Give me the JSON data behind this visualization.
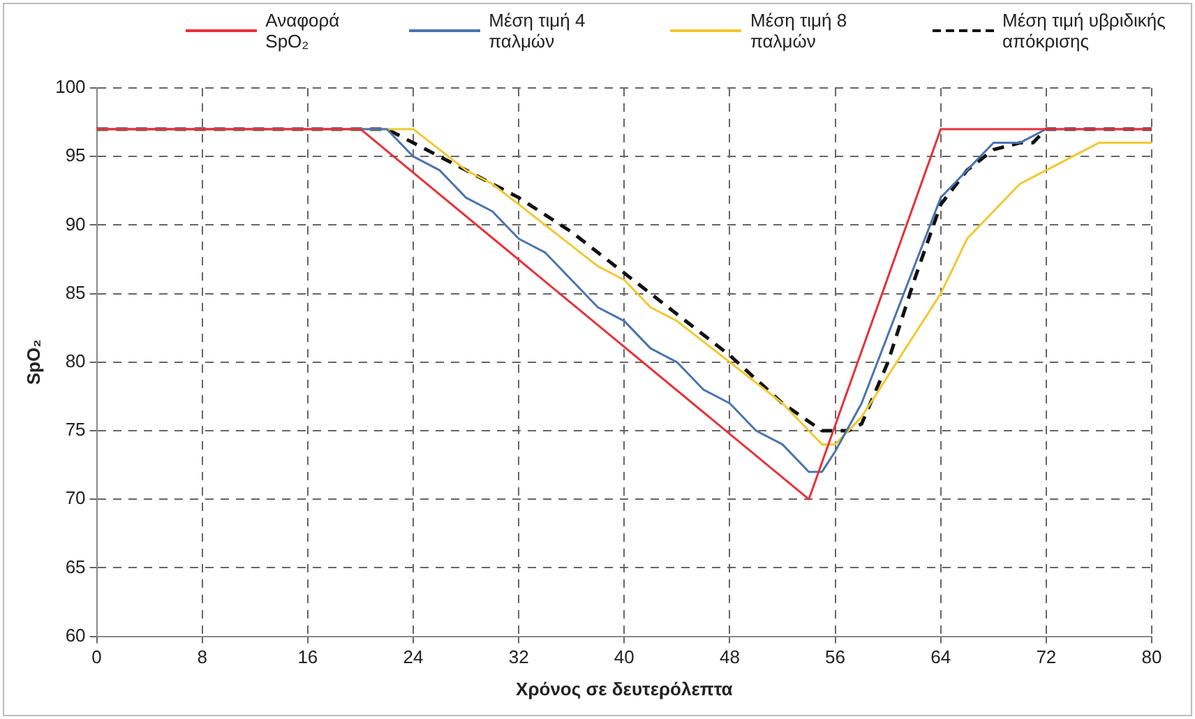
{
  "chart_data": {
    "type": "line",
    "xlabel": "Χρόνος σε δευτερόλεπτα",
    "ylabel": "SpO₂",
    "xlim": [
      0,
      80
    ],
    "xticks": [
      0,
      8,
      16,
      24,
      32,
      40,
      48,
      56,
      64,
      72,
      80
    ],
    "ylim": [
      60,
      100
    ],
    "yticks": [
      60,
      65,
      70,
      75,
      80,
      85,
      90,
      95,
      100
    ],
    "grid": true,
    "legend": "top",
    "marker": "none",
    "series": [
      {
        "name": "Αναφορά SpO₂",
        "color": "#e8303a",
        "line_style": "solid",
        "x": [
          0,
          20,
          54,
          64,
          80
        ],
        "values": [
          97,
          97,
          70,
          97,
          97
        ]
      },
      {
        "name": "Μέση τιμή 4 παλμών",
        "color": "#4a74b0",
        "line_style": "solid",
        "x": [
          0,
          22,
          24,
          26,
          28,
          30,
          32,
          34,
          36,
          38,
          40,
          42,
          44,
          46,
          48,
          50,
          52,
          54,
          55,
          56,
          58,
          60,
          62,
          64,
          66,
          68,
          70,
          72,
          80
        ],
        "values": [
          97,
          97,
          95,
          94,
          92,
          91,
          89,
          88,
          86,
          84,
          83,
          81,
          80,
          78,
          77,
          75,
          74,
          72,
          72,
          73.5,
          77,
          82,
          87,
          92,
          94,
          96,
          96,
          97,
          97
        ]
      },
      {
        "name": "Μέση τιμή 8 παλμών",
        "color": "#f2c830",
        "line_style": "solid",
        "x": [
          0,
          24,
          26,
          28,
          30,
          32,
          34,
          36,
          38,
          40,
          42,
          44,
          46,
          48,
          50,
          52,
          54,
          55,
          56,
          58,
          60,
          62,
          64,
          66,
          68,
          70,
          72,
          74,
          76,
          80
        ],
        "values": [
          97,
          97,
          95.5,
          94,
          93,
          91.5,
          90,
          88.5,
          87,
          86,
          84,
          83,
          81.5,
          80,
          78.5,
          77,
          75,
          74,
          74,
          76,
          79,
          82,
          85,
          89,
          91,
          93,
          94,
          95,
          96,
          96
        ]
      },
      {
        "name": "Μέση τιμή υβριδικής απόκρισης",
        "color": "#111111",
        "line_style": "dashed",
        "x": [
          0,
          22,
          24,
          28,
          32,
          36,
          40,
          44,
          48,
          52,
          55,
          57,
          58,
          60,
          62,
          64,
          66,
          68,
          70,
          71,
          72,
          80
        ],
        "values": [
          97,
          97,
          96,
          94,
          92,
          89.5,
          86.5,
          83.5,
          80.5,
          77,
          75,
          75,
          75.5,
          80,
          86,
          91.5,
          94,
          95.5,
          96,
          96,
          97,
          97
        ]
      }
    ]
  }
}
